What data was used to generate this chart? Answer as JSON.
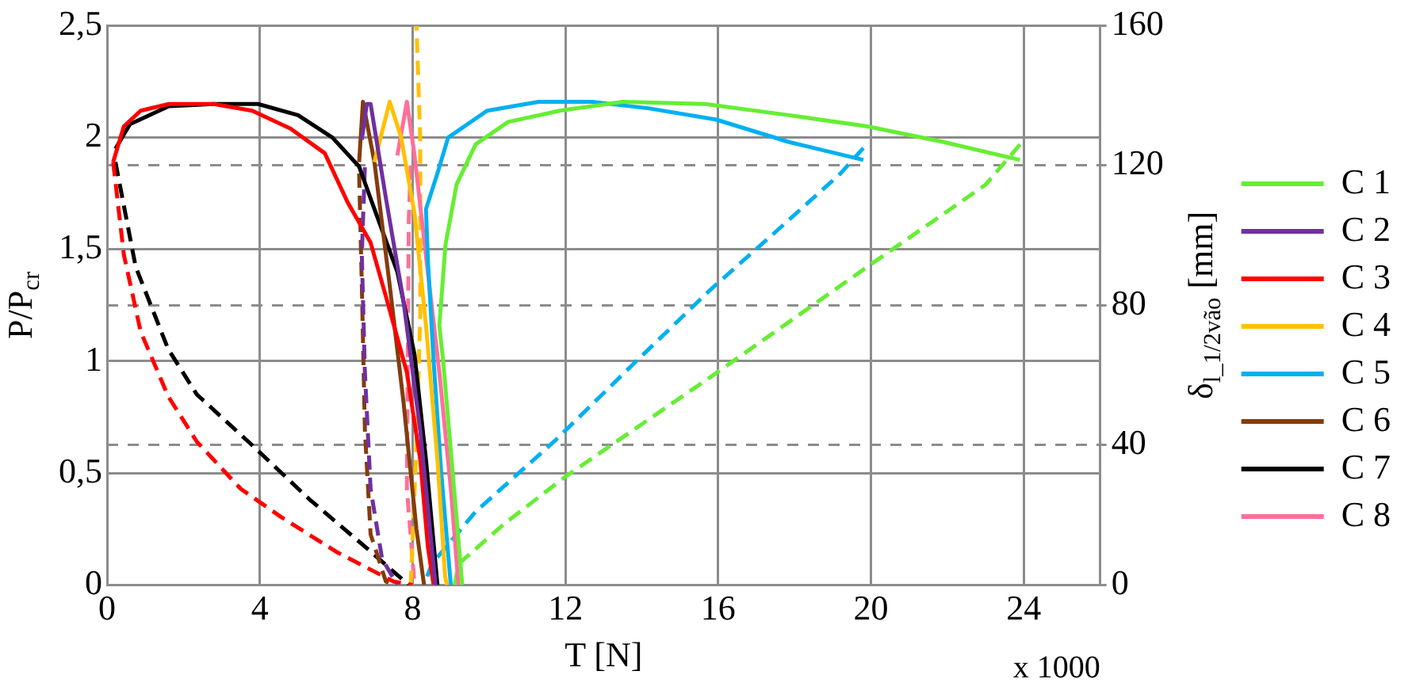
{
  "chart_data": {
    "type": "line",
    "xlabel": "T [N]",
    "ylabel": "P/P$_{cr}$",
    "y2label": "δ$_{l_1/2vão}$ [mm]",
    "annotations": [
      "x 1000"
    ],
    "xlim": [
      0,
      26
    ],
    "xticks": [
      0,
      4,
      8,
      12,
      16,
      20,
      24
    ],
    "ylim": [
      0,
      2.5
    ],
    "yticks": [
      0,
      {
        "value": 0.5,
        "label": "0,5"
      },
      1,
      {
        "value": 1.5,
        "label": "1,5"
      },
      2,
      {
        "value": 2.5,
        "label": "2,5"
      }
    ],
    "y2lim": [
      0,
      160
    ],
    "y2ticks": [
      0,
      40,
      80,
      120,
      160
    ],
    "grid": true,
    "legend": "right",
    "marker": "none",
    "line_style": "solid",
    "series": [
      {
        "name": "C 1",
        "color": "#66ee33",
        "x": [
          9.3,
          9.15,
          8.8,
          8.7,
          8.86,
          9.15,
          9.65,
          10.5,
          11.85,
          13.5,
          15.65,
          17.85,
          19.9,
          21.9,
          23.9
        ],
        "values": [
          0,
          0.3,
          1.0,
          1.16,
          1.52,
          1.79,
          1.97,
          2.07,
          2.12,
          2.16,
          2.15,
          2.1,
          2.05,
          1.98,
          1.9
        ]
      },
      {
        "name": "C 2",
        "color": "#7030a0",
        "x": [
          6.67,
          6.8,
          6.9,
          7.3,
          7.76,
          8.2,
          8.5,
          8.6
        ],
        "values": [
          1.99,
          2.15,
          2.15,
          1.73,
          1.27,
          0.69,
          0.17,
          0
        ]
      },
      {
        "name": "C 3",
        "color": "#ff0000",
        "x": [
          0.16,
          0.44,
          0.88,
          1.62,
          2.79,
          3.8,
          4.8,
          5.7,
          6.3,
          6.9,
          7.3,
          7.85,
          8.2,
          8.4,
          8.55
        ],
        "values": [
          1.89,
          2.05,
          2.12,
          2.15,
          2.15,
          2.12,
          2.04,
          1.93,
          1.71,
          1.53,
          1.29,
          0.95,
          0.56,
          0.17,
          0
        ]
      },
      {
        "name": "C 4",
        "color": "#ffc000",
        "x": [
          7.0,
          7.4,
          7.7,
          8.05,
          8.35,
          8.65,
          8.85,
          8.9
        ],
        "values": [
          1.89,
          2.16,
          2.0,
          1.66,
          1.16,
          0.56,
          0.04,
          0
        ]
      },
      {
        "name": "C 5",
        "color": "#00b0f0",
        "x": [
          9.0,
          8.75,
          8.55,
          8.4,
          8.35,
          8.65,
          8.93,
          9.95,
          11.3,
          12.7,
          14.2,
          15.95,
          17.85,
          19.8
        ],
        "values": [
          0,
          0.5,
          1.0,
          1.45,
          1.68,
          1.84,
          2.0,
          2.12,
          2.16,
          2.16,
          2.13,
          2.08,
          1.98,
          1.9
        ]
      },
      {
        "name": "C 6",
        "color": "#843c0c",
        "x": [
          6.6,
          6.7,
          7.0,
          7.4,
          7.76,
          8.1,
          8.3
        ],
        "values": [
          1.89,
          2.16,
          1.89,
          1.34,
          0.82,
          0.25,
          0
        ]
      },
      {
        "name": "C 7",
        "color": "#000000",
        "x": [
          0.22,
          0.6,
          1.62,
          2.8,
          3.95,
          5.0,
          5.9,
          6.6,
          7.0,
          7.6,
          8.05,
          8.35,
          8.65
        ],
        "values": [
          1.95,
          2.06,
          2.14,
          2.15,
          2.15,
          2.1,
          2.0,
          1.87,
          1.68,
          1.4,
          1.03,
          0.56,
          0
        ]
      },
      {
        "name": "C 8",
        "color": "#ff6f9a",
        "x": [
          7.6,
          7.85,
          8.05,
          8.35,
          8.7,
          9.0,
          9.2
        ],
        "values": [
          1.92,
          2.16,
          1.92,
          1.47,
          0.95,
          0.43,
          0
        ]
      },
      {
        "color": "#66ee33",
        "axis": "y2",
        "line_style": "dashed",
        "x": [
          23.9,
          23.0,
          19.9,
          17.3,
          15.8,
          12.0,
          10.4,
          9.2,
          9.1
        ],
        "values": [
          126,
          114.5,
          91,
          71,
          59.5,
          31,
          17.5,
          6,
          0
        ]
      },
      {
        "color": "#7030a0",
        "axis": "y2",
        "line_style": "dashed",
        "x": [
          6.75,
          6.67,
          6.75,
          6.9,
          7.2,
          7.6
        ],
        "values": [
          119.5,
          94.5,
          61,
          27.5,
          7.5,
          0
        ]
      },
      {
        "color": "#ff0000",
        "axis": "y2",
        "line_style": "dashed",
        "x": [
          0.16,
          0.44,
          0.88,
          1.6,
          2.35,
          3.5,
          4.55,
          6.0,
          7.5,
          8.0
        ],
        "values": [
          121,
          94.5,
          72.5,
          54,
          41,
          27.5,
          19.5,
          9.5,
          1,
          0
        ]
      },
      {
        "color": "#ffc000",
        "axis": "y2",
        "line_style": "dashed",
        "x": [
          7.95,
          8.1,
          8.2,
          8.2,
          8.1
        ],
        "values": [
          0,
          40,
          77.5,
          127.6,
          160
        ]
      },
      {
        "color": "#00b0f0",
        "axis": "y2",
        "line_style": "dashed",
        "x": [
          19.8,
          19.2,
          17.5,
          15.8,
          13.9,
          11.7,
          9.65,
          8.5,
          8.3
        ],
        "values": [
          125,
          117.7,
          101,
          84.5,
          64.5,
          41,
          21,
          6,
          0
        ]
      },
      {
        "color": "#843c0c",
        "axis": "y2",
        "line_style": "dashed",
        "x": [
          6.6,
          6.67,
          6.75,
          6.9,
          7.3,
          7.5
        ],
        "values": [
          117.7,
          86,
          44.5,
          14.5,
          1,
          0
        ]
      },
      {
        "color": "#000000",
        "axis": "y2",
        "line_style": "dashed",
        "x": [
          0.22,
          0.75,
          1.6,
          2.35,
          3.7,
          5.3,
          6.75,
          7.9
        ],
        "values": [
          121,
          91,
          67.5,
          54.5,
          41,
          24.5,
          11,
          0
        ]
      },
      {
        "color": "#ff6f9a",
        "axis": "y2",
        "line_style": "dashed",
        "x": [
          7.95,
          7.9,
          7.85,
          8.05
        ],
        "values": [
          120,
          104.5,
          27.5,
          0
        ]
      }
    ]
  }
}
